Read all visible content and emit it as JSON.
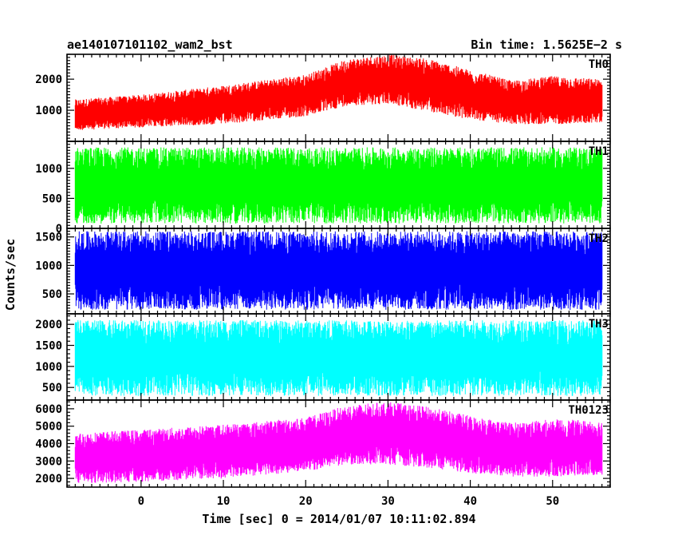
{
  "chart_data": {
    "type": "line",
    "title": "ae140107101102_wam2_bst",
    "subtitle": "Bin time: 1.5625E−2 s",
    "xlabel": "Time [sec] 0 = 2014/01/07 10:11:02.894",
    "ylabel": "Counts/sec",
    "xlim": [
      -9,
      57
    ],
    "x_ticks": [
      0,
      10,
      20,
      30,
      40,
      50
    ],
    "x_range": [
      -8,
      56
    ],
    "bin_time_s": 0.015625,
    "panels": [
      {
        "name": "TH0",
        "color": "#ff0000",
        "ylim": [
          0,
          2800
        ],
        "y_ticks": [
          1000,
          2000
        ],
        "envelope": {
          "t": [
            -8,
            0,
            10,
            20,
            25,
            30,
            35,
            40,
            45,
            50,
            56
          ],
          "low": [
            350,
            450,
            550,
            800,
            1150,
            1200,
            950,
            700,
            550,
            550,
            600
          ],
          "high": [
            1350,
            1500,
            1800,
            2150,
            2650,
            2800,
            2650,
            2300,
            1950,
            2100,
            2000
          ]
        }
      },
      {
        "name": "TH1",
        "color": "#00ff00",
        "ylim": [
          0,
          1450
        ],
        "y_ticks": [
          0,
          500,
          1000
        ],
        "envelope": {
          "t": [
            -8,
            56
          ],
          "low": [
            80,
            80
          ],
          "high": [
            1350,
            1350
          ]
        }
      },
      {
        "name": "TH2",
        "color": "#0000ff",
        "ylim": [
          150,
          1650
        ],
        "y_ticks": [
          500,
          1000,
          1500
        ],
        "envelope": {
          "t": [
            -8,
            56
          ],
          "low": [
            220,
            220
          ],
          "high": [
            1600,
            1600
          ]
        }
      },
      {
        "name": "TH3",
        "color": "#00ffff",
        "ylim": [
          200,
          2250
        ],
        "y_ticks": [
          500,
          1000,
          1500,
          2000
        ],
        "envelope": {
          "t": [
            -8,
            56
          ],
          "low": [
            300,
            300
          ],
          "high": [
            2100,
            2100
          ]
        }
      },
      {
        "name": "TH0123",
        "color": "#ff00ff",
        "ylim": [
          1500,
          6500
        ],
        "y_ticks": [
          2000,
          3000,
          4000,
          5000,
          6000
        ],
        "envelope": {
          "t": [
            -8,
            0,
            10,
            20,
            25,
            30,
            35,
            40,
            45,
            50,
            56
          ],
          "low": [
            1700,
            1800,
            2000,
            2400,
            2800,
            2800,
            2600,
            2300,
            2100,
            2100,
            2200
          ],
          "high": [
            4600,
            4800,
            5100,
            5500,
            6200,
            6400,
            6100,
            5600,
            5200,
            5400,
            5300
          ]
        }
      }
    ]
  }
}
